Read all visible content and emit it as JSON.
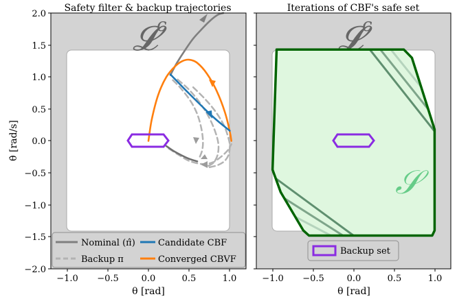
{
  "chart_data": [
    {
      "type": "line",
      "title": "Safety filter & backup trajectories",
      "xlabel": "θ [rad]",
      "ylabel": "θ̇ [rad/s]",
      "xlim": [
        -1.2,
        1.2
      ],
      "ylim": [
        -2.0,
        2.0
      ],
      "xticks": [
        "−1.0",
        "−0.5",
        "0.0",
        "0.5",
        "1.0"
      ],
      "yticks": [
        "2.0",
        "1.5",
        "1.0",
        "0.5",
        "0.0",
        "−0.5",
        "−1.0",
        "−1.5",
        "−2.0"
      ],
      "region_label": "𝓛",
      "region_label_sup": "c",
      "legend": {
        "placement": "lower-left",
        "items": [
          {
            "label": "Nominal (π̂)",
            "color": "#7f7f7f",
            "style": "solid"
          },
          {
            "label": "Backup π",
            "color": "#b3b3b3",
            "style": "dashed"
          },
          {
            "label": "Candidate CBF",
            "color": "#1f77b4",
            "style": "solid"
          },
          {
            "label": "Converged CBVF",
            "color": "#ff7f0e",
            "style": "solid"
          }
        ]
      },
      "series": [
        {
          "key": "nominal",
          "color": "#7f7f7f",
          "x": [
            0.27,
            0.35,
            0.45,
            0.55,
            0.65,
            0.75,
            0.85,
            0.92
          ],
          "y": [
            1.03,
            1.22,
            1.42,
            1.6,
            1.74,
            1.87,
            1.97,
            2.0
          ]
        },
        {
          "key": "cbf",
          "color": "#1f77b4",
          "x": [
            0.27,
            0.5,
            0.8,
            1.0
          ],
          "y": [
            1.04,
            0.74,
            0.37,
            0.16
          ]
        },
        {
          "key": "cbvf",
          "color": "#ff7f0e",
          "x": [
            0.0,
            0.04,
            0.12,
            0.22,
            0.33,
            0.42,
            0.5,
            0.6,
            0.72,
            0.84,
            0.94,
            1.0,
            1.02
          ],
          "y": [
            0.0,
            0.33,
            0.72,
            1.0,
            1.17,
            1.25,
            1.27,
            1.22,
            1.05,
            0.78,
            0.45,
            0.15,
            0.0
          ]
        },
        {
          "key": "backup1",
          "color": "#b3b3b3",
          "dashed": true,
          "x": [
            0.3,
            0.4,
            0.52,
            0.6,
            0.65,
            0.67,
            0.66,
            0.62
          ],
          "y": [
            0.95,
            0.82,
            0.62,
            0.42,
            0.2,
            0.0,
            -0.15,
            -0.28
          ]
        },
        {
          "key": "backup2",
          "color": "#b3b3b3",
          "dashed": true,
          "x": [
            0.36,
            0.5,
            0.63,
            0.74,
            0.82,
            0.86,
            0.85,
            0.8,
            0.72
          ],
          "y": [
            0.96,
            0.8,
            0.6,
            0.38,
            0.15,
            -0.05,
            -0.22,
            -0.34,
            -0.4
          ]
        },
        {
          "key": "backup3",
          "color": "#b3b3b3",
          "dashed": true,
          "x": [
            0.55,
            0.7,
            0.83,
            0.93,
            0.98,
            1.0,
            0.99,
            0.94,
            0.85,
            0.72
          ],
          "y": [
            0.84,
            0.65,
            0.45,
            0.24,
            0.06,
            -0.06,
            -0.2,
            -0.31,
            -0.38,
            -0.42
          ]
        },
        {
          "key": "backup4",
          "color": "#b3b3b3",
          "dashed": true,
          "x": [
            0.25,
            0.35,
            0.48,
            0.6,
            0.7,
            0.8,
            0.9,
            0.98,
            1.02
          ],
          "y": [
            -0.12,
            -0.2,
            -0.3,
            -0.35,
            -0.36,
            -0.33,
            -0.24,
            -0.14,
            -0.05
          ]
        },
        {
          "key": "nominal-tail",
          "color": "#707070",
          "x": [
            0.22,
            0.3,
            0.4,
            0.5,
            0.6
          ],
          "y": [
            -0.08,
            -0.15,
            -0.22,
            -0.28,
            -0.32
          ]
        }
      ]
    },
    {
      "type": "area",
      "title": "Iterations of CBF's safe set",
      "xlabel": "θ [rad]",
      "xlim": [
        -1.2,
        1.2
      ],
      "ylim": [
        -2.0,
        2.0
      ],
      "xticks": [
        "−1.0",
        "−0.5",
        "0.0",
        "0.5",
        "1.0"
      ],
      "region_label": "𝓛",
      "region_label_sup": "c",
      "safe_set_label": "𝒮",
      "legend": {
        "placement": "lower-center",
        "items": [
          {
            "label": "Backup set",
            "color": "#8a2be2"
          }
        ]
      },
      "colors": {
        "safe_fill": "#dff7df",
        "safe_edge": "#006400",
        "backup": "#8a2be2",
        "lc_fill": "#d3d3d3"
      },
      "safe_set_boundary": {
        "x": [
          -1.0,
          -0.95,
          0.62,
          0.72,
          1.0,
          1.0,
          0.97,
          -0.55,
          -0.62,
          -0.9,
          -1.0
        ],
        "y": [
          -0.45,
          1.43,
          1.43,
          1.3,
          0.18,
          -1.4,
          -1.48,
          -1.48,
          -1.4,
          -0.8,
          -0.45
        ]
      },
      "iterations": [
        {
          "x1": [
            0.2,
            1.0
          ],
          "y1": [
            1.43,
            0.15
          ],
          "color": "#5f8f6f"
        },
        {
          "x1": [
            0.33,
            1.0
          ],
          "y1": [
            1.43,
            0.37
          ],
          "color": "#7ea58a"
        },
        {
          "x1": [
            0.46,
            1.0
          ],
          "y1": [
            1.43,
            0.58
          ],
          "color": "#b5d4bd"
        },
        {
          "x1": [
            -1.0,
            0.0
          ],
          "y1": [
            -0.55,
            -1.48
          ],
          "color": "#5f8f6f"
        },
        {
          "x1": [
            -1.0,
            -0.13
          ],
          "y1": [
            -0.78,
            -1.48
          ],
          "color": "#7ea58a"
        },
        {
          "x1": [
            -1.0,
            -0.28
          ],
          "y1": [
            -1.0,
            -1.48
          ],
          "color": "#b5d4bd"
        }
      ]
    }
  ]
}
